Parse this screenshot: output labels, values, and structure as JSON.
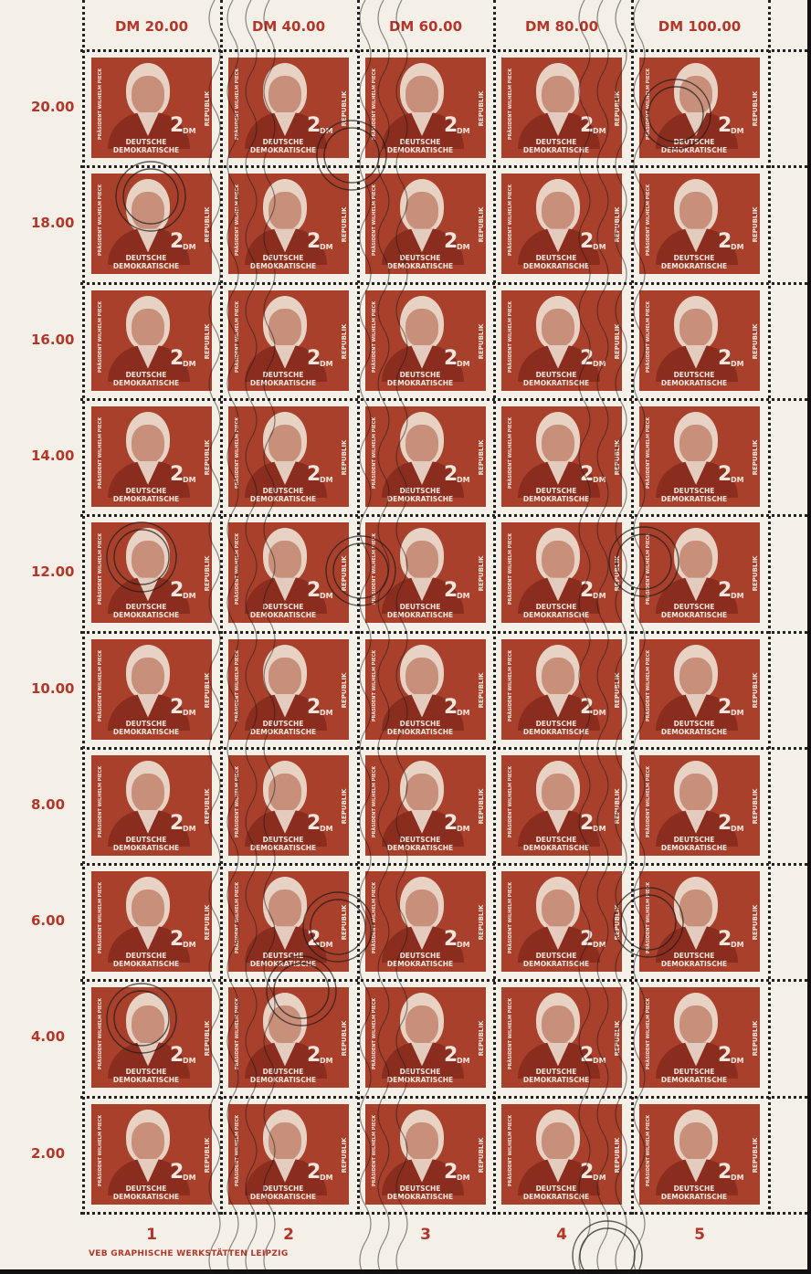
{
  "sheet": {
    "column_headers": [
      "DM 20.00",
      "DM 40.00",
      "DM 60.00",
      "DM 80.00",
      "DM 100.00"
    ],
    "row_labels": [
      "20.00",
      "18.00",
      "16.00",
      "14.00",
      "12.00",
      "10.00",
      "8.00",
      "6.00",
      "4.00",
      "2.00"
    ],
    "column_numbers": [
      "1",
      "2",
      "3",
      "4",
      "5"
    ],
    "imprint": "VEB GRAPHISCHE WERKSTÄTTEN LEIPZIG"
  },
  "stamp": {
    "top_text": "PRÄSIDENT WILHELM PIECK",
    "value": "2",
    "currency": "DM",
    "side_text": "REPUBLIK",
    "bottom_text": "DEUTSCHE DEMOKRATISCHE",
    "rows": 10,
    "columns": 5
  },
  "colors": {
    "paper": "#f4f0e7",
    "stamp": "#a9402c",
    "margin_text": "#b3362a",
    "postmark": "#1a1a1a"
  }
}
